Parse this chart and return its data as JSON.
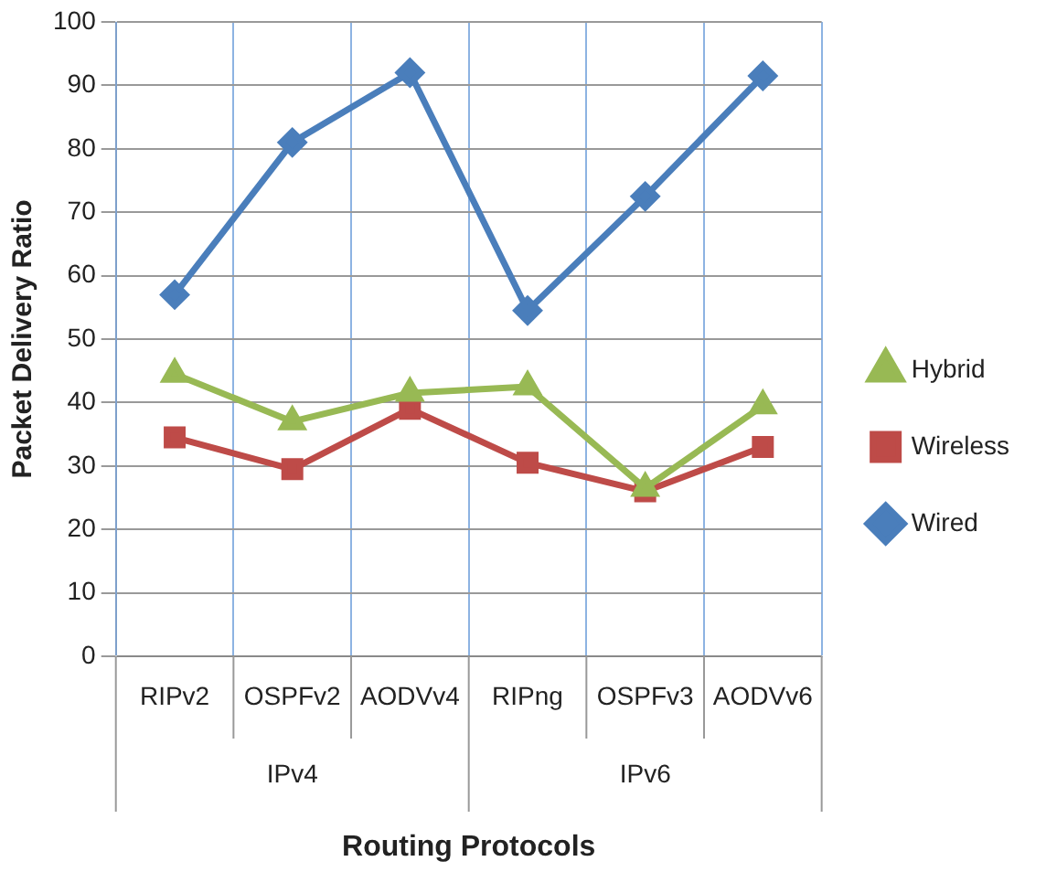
{
  "chart_data": {
    "type": "line",
    "xlabel": "Routing Protocols",
    "ylabel": "Packet Delivery Ratio",
    "categories": [
      "RIPv2",
      "OSPFv2",
      "AODVv4",
      "RIPng",
      "OSPFv3",
      "AODVv6"
    ],
    "series": [
      {
        "name": "Wired",
        "color": "#4a7ebb",
        "marker": "diamond",
        "values": [
          57,
          81,
          92,
          54.5,
          72.5,
          91.5
        ]
      },
      {
        "name": "Wireless",
        "color": "#be4b48",
        "marker": "square",
        "values": [
          34.5,
          29.5,
          39,
          30.5,
          26,
          33
        ]
      },
      {
        "name": "Hybrid",
        "color": "#98b954",
        "marker": "triangle",
        "values": [
          44.5,
          37,
          41.5,
          42.5,
          26.5,
          39.5
        ]
      }
    ],
    "annotations": [
      "IPv4",
      "IPv6"
    ],
    "ylim": [
      0,
      100
    ],
    "yticks": [
      0,
      10,
      20,
      30,
      40,
      50,
      60,
      70,
      80,
      90,
      100
    ],
    "grid": true,
    "legend": "right"
  }
}
